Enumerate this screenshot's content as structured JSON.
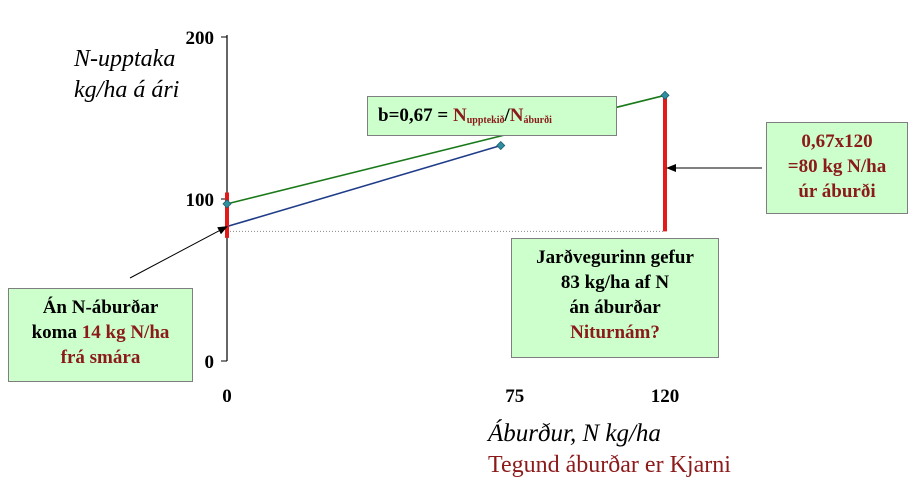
{
  "chart_data": {
    "type": "line",
    "ylabel": [
      "N-upptaka",
      "kg/ha á ári"
    ],
    "xlabel": "Áburður, N  kg/ha",
    "subtitle": "Tegund áburðar er Kjarni",
    "ylim": [
      0,
      200
    ],
    "xlim": [
      0,
      120
    ],
    "yticks": [
      "200",
      "100",
      "0"
    ],
    "xticks": [
      "0",
      "75",
      "120"
    ],
    "series": [
      {
        "color": "#1f3c88",
        "points": [
          [
            0,
            83
          ],
          [
            75,
            133
          ]
        ]
      },
      {
        "color": "#1a7a1a",
        "points": [
          [
            0,
            97
          ],
          [
            120,
            164
          ]
        ]
      }
    ],
    "markers": [
      [
        0,
        97
      ],
      [
        75,
        133
      ],
      [
        120,
        164
      ]
    ],
    "reference_line_y": 80,
    "bars": [
      {
        "x": 0,
        "y_from": 76,
        "y_to": 104
      },
      {
        "x": 120,
        "y_from": 80,
        "y_to": 164
      }
    ],
    "colors": {
      "accent_red": "#e31a1a",
      "text_red": "#8b1a1a",
      "box_green": "#ccffcc"
    },
    "annotations": {
      "slope": {
        "prefix": "b=0,67 = ",
        "n1": "N",
        "sub1": "upptekið",
        "slash": "/",
        "n2": "N",
        "sub2": "áburði"
      },
      "calc": [
        "0,67x120",
        "=80 kg N/ha",
        "úr áburði"
      ],
      "soil": [
        "Jarðvegurinn gefur",
        "83 kg/ha af N",
        "án áburðar",
        "Niturnám?"
      ],
      "clover": {
        "line1": "Án N-áburðar",
        "line2_a": "koma ",
        "line2_b": "14 kg N/ha",
        "line3": "frá smára"
      }
    }
  }
}
